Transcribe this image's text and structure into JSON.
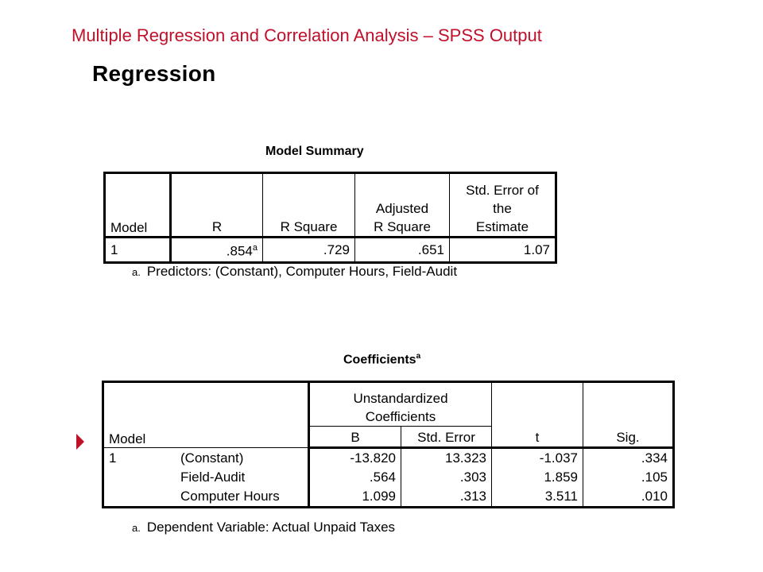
{
  "slide_title": "Multiple Regression and Correlation Analysis – SPSS Output",
  "section_heading": "Regression",
  "model_summary": {
    "caption": "Model Summary",
    "headers": {
      "model": "Model",
      "r": "R",
      "r_square": "R Square",
      "adjusted_line1": "Adjusted",
      "adjusted_line2": "R Square",
      "stderr_line1": "Std. Error of",
      "stderr_line2": "the",
      "stderr_line3": "Estimate"
    },
    "row": {
      "model": "1",
      "r": ".854",
      "r_footnote": "a",
      "r_square": ".729",
      "adjusted_r_square": ".651",
      "std_error": "1.07"
    },
    "footnote_mark": "a.",
    "footnote": "Predictors: (Constant), Computer Hours, Field-Audit"
  },
  "coefficients": {
    "caption": "Coefficients",
    "caption_sup": "a",
    "headers": {
      "model": "Model",
      "unstd_line1": "Unstandardized",
      "unstd_line2": "Coefficients",
      "b": "B",
      "std_error": "Std. Error",
      "t": "t",
      "sig": "Sig."
    },
    "model_number": "1",
    "rows": [
      {
        "variable": "(Constant)",
        "b": "-13.820",
        "std_error": "13.323",
        "t": "-1.037",
        "sig": ".334"
      },
      {
        "variable": "Field-Audit",
        "b": ".564",
        "std_error": ".303",
        "t": "1.859",
        "sig": ".105"
      },
      {
        "variable": "Computer Hours",
        "b": "1.099",
        "std_error": ".313",
        "t": "3.511",
        "sig": ".010"
      }
    ],
    "footnote_mark": "a.",
    "footnote": "Dependent Variable: Actual Unpaid Taxes"
  },
  "colors": {
    "title": "#c0102a",
    "bullet": "#c0102a",
    "text": "#000000"
  },
  "icons": {
    "bullet": "right-triangle-bullet-icon"
  }
}
